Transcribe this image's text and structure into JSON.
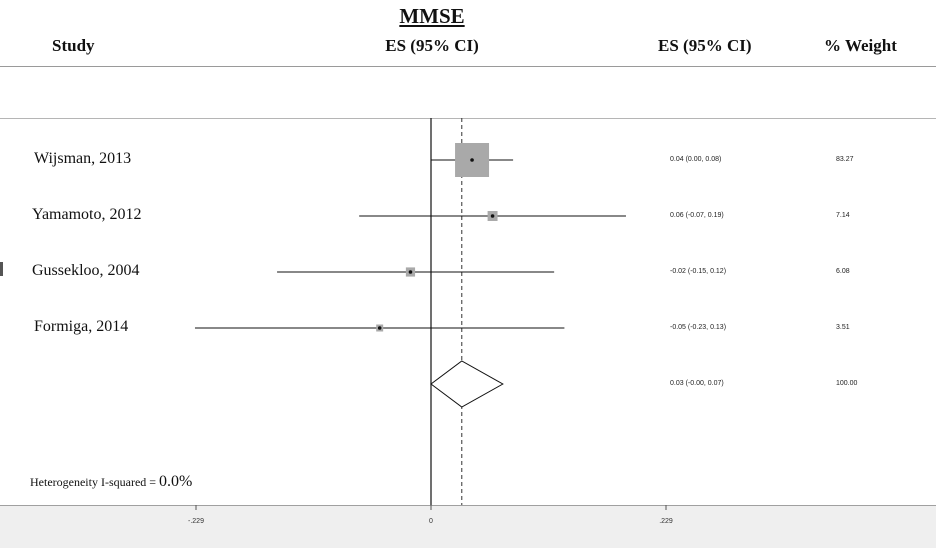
{
  "header": {
    "title": "MMSE",
    "study_col": "Study",
    "es_col": "ES (95% CI)",
    "es_col_right": "ES (95% CI)",
    "weight_col": "% Weight"
  },
  "chart_data": {
    "type": "forest",
    "title": "MMSE",
    "studies": [
      {
        "name": "Wijsman, 2013",
        "es": 0.04,
        "ci_low": 0.0,
        "ci_high": 0.08,
        "es_text": "0.04 (0.00, 0.08)",
        "weight": 83.27,
        "weight_text": "83.27"
      },
      {
        "name": "Yamamoto, 2012",
        "es": 0.06,
        "ci_low": -0.07,
        "ci_high": 0.19,
        "es_text": "0.06 (-0.07, 0.19)",
        "weight": 7.14,
        "weight_text": "7.14"
      },
      {
        "name": "Gussekloo, 2004",
        "es": -0.02,
        "ci_low": -0.15,
        "ci_high": 0.12,
        "es_text": "-0.02 (-0.15, 0.12)",
        "weight": 6.08,
        "weight_text": "6.08"
      },
      {
        "name": "Formiga, 2014",
        "es": -0.05,
        "ci_low": -0.23,
        "ci_high": 0.13,
        "es_text": "-0.05 (-0.23, 0.13)",
        "weight": 3.51,
        "weight_text": "3.51"
      }
    ],
    "overall": {
      "es": 0.03,
      "ci_low": -0.0,
      "ci_high": 0.07,
      "es_text": "0.03 (-0.00, 0.07)",
      "weight_text": "100.00"
    },
    "heterogeneity": {
      "label": "Heterogeneity I-squared =",
      "value": "0.0%"
    },
    "x_ticks": [
      {
        "value": -0.229,
        "label": "-.229"
      },
      {
        "value": 0,
        "label": "0"
      },
      {
        "value": 0.229,
        "label": ".229"
      }
    ],
    "xlim": [
      -0.229,
      0.229
    ],
    "null_line": 0
  },
  "colors": {
    "box": "#a9a9a9",
    "line": "#111111",
    "axis_band": "#efefef"
  }
}
